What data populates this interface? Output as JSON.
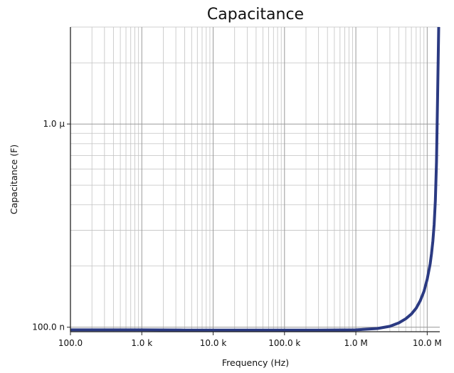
{
  "chart_data": {
    "type": "line",
    "title": "Capacitance",
    "xlabel": "Frequency (Hz)",
    "ylabel": "Capacitance (F)",
    "xscale": "log",
    "yscale": "log",
    "xlim": [
      100,
      15000000
    ],
    "ylim": [
      9.5e-08,
      3e-06
    ],
    "grid": true,
    "x_ticks": [
      {
        "value": 100,
        "label": "100.0"
      },
      {
        "value": 1000,
        "label": "1.0 k"
      },
      {
        "value": 10000,
        "label": "10.0 k"
      },
      {
        "value": 100000,
        "label": "100.0 k"
      },
      {
        "value": 1000000,
        "label": "1.0 M"
      },
      {
        "value": 10000000,
        "label": "10.0 M"
      }
    ],
    "y_ticks": [
      {
        "value": 1e-07,
        "label": "100.0 n"
      },
      {
        "value": 1e-06,
        "label": "1.0 µ"
      }
    ],
    "series": [
      {
        "color": "#2b3a82",
        "x": [
          100,
          1000,
          4000,
          10000,
          100000,
          300000,
          1000000,
          2000000,
          3000000,
          4000000,
          5000000,
          6000000,
          7000000,
          8000000,
          9000000,
          10000000,
          11000000,
          11500000,
          12000000,
          12500000,
          13000000,
          13500000,
          14000000,
          14500000
        ],
        "y": [
          9.7e-08,
          9.7e-08,
          9.68e-08,
          9.67e-08,
          9.67e-08,
          9.67e-08,
          9.7e-08,
          9.85e-08,
          1.01e-07,
          1.05e-07,
          1.1e-07,
          1.16e-07,
          1.24e-07,
          1.35e-07,
          1.5e-07,
          1.72e-07,
          2.05e-07,
          2.3e-07,
          2.65e-07,
          3.2e-07,
          4.2e-07,
          6.5e-07,
          1.4e-06,
          3e-06
        ]
      }
    ]
  }
}
